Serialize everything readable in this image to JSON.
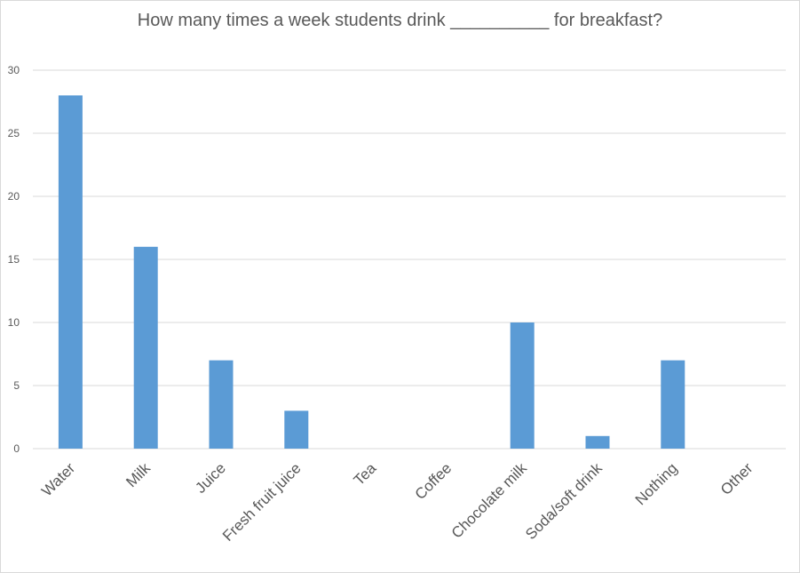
{
  "chart_data": {
    "type": "bar",
    "title": "How many times a week students drink __________ for breakfast?",
    "categories": [
      "Water",
      "Milk",
      "Juice",
      "Fresh fruit juice",
      "Tea",
      "Coffee",
      "Chocolate milk",
      "Soda/soft drink",
      "Nothing",
      "Other"
    ],
    "values": [
      28,
      16,
      7,
      3,
      0,
      0,
      10,
      1,
      7,
      0
    ],
    "xlabel": "",
    "ylabel": "",
    "ylim": [
      0,
      30
    ],
    "yticks": [
      0,
      5,
      10,
      15,
      20,
      25,
      30
    ],
    "grid": true,
    "legend": "none",
    "colors": {
      "bar": "#5b9bd5",
      "grid": "#d9d9d9",
      "text": "#595959"
    }
  }
}
